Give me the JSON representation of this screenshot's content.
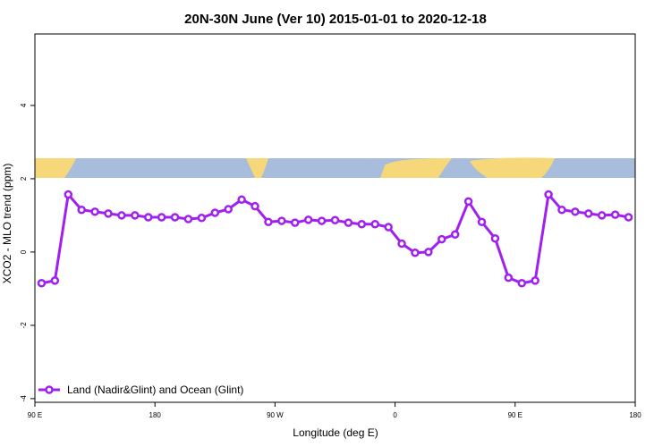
{
  "chart_data": {
    "type": "line",
    "title": "20N-30N June (Ver 10)   2015-01-01 to 2020-12-18",
    "xlabel": "Longitude (deg E)",
    "ylabel": "XCO2 - MLO trend (ppm)",
    "x": [
      95,
      105,
      115,
      125,
      135,
      145,
      155,
      165,
      175,
      185,
      195,
      205,
      215,
      225,
      235,
      245,
      255,
      265,
      275,
      285,
      295,
      305,
      315,
      325,
      335,
      345,
      355,
      365,
      375,
      385,
      395,
      405,
      415,
      425,
      435,
      445,
      455,
      465,
      475,
      485,
      495,
      505,
      515,
      525,
      535
    ],
    "series": [
      {
        "name": "Land (Nadir&Glint) and Ocean (Glint)",
        "color": "#a020f0",
        "values": [
          -0.85,
          -0.78,
          1.57,
          1.15,
          1.1,
          1.05,
          1.0,
          1.0,
          0.95,
          0.95,
          0.95,
          0.9,
          0.93,
          1.07,
          1.17,
          1.43,
          1.25,
          0.82,
          0.85,
          0.8,
          0.88,
          0.85,
          0.87,
          0.8,
          0.76,
          0.76,
          0.68,
          0.23,
          -0.02,
          0.0,
          0.35,
          0.48,
          1.38,
          0.82,
          0.37,
          -0.7,
          -0.85,
          -0.78,
          1.57,
          1.15,
          1.1,
          1.05,
          1.0,
          1.02,
          0.95
        ]
      }
    ],
    "xlim": [
      90,
      540
    ],
    "xticks": [
      {
        "value": 90,
        "label": "90 E"
      },
      180,
      {
        "value": 270,
        "label": "90 W"
      },
      {
        "value": 360,
        "label": "0"
      },
      {
        "value": 450,
        "label": "90 E"
      },
      {
        "value": 540,
        "label": "180"
      }
    ],
    "ylim": [
      -4.1,
      5.95
    ],
    "yticks": [
      -4,
      -2,
      0,
      2,
      4
    ],
    "legend": "bottom-left"
  }
}
